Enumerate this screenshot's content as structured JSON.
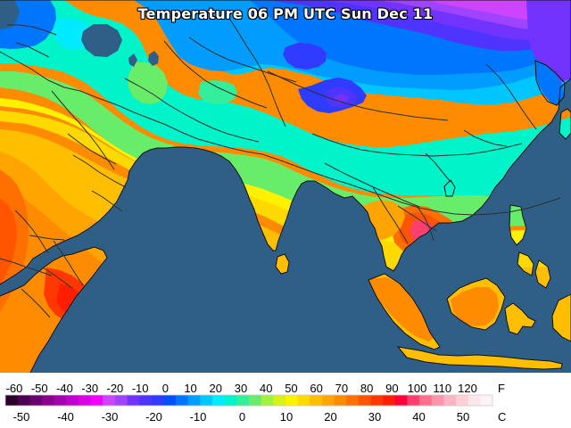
{
  "map": {
    "title": "Temperature 06 PM UTC Sun Dec 11"
  },
  "legend": {
    "fahrenheit_labels": [
      "-60",
      "-50",
      "-40",
      "-30",
      "-20",
      "-10",
      "0",
      "10",
      "20",
      "30",
      "40",
      "50",
      "60",
      "70",
      "80",
      "90",
      "100",
      "110",
      "120"
    ],
    "celsius_labels": [
      "-50",
      "-40",
      "-30",
      "-20",
      "-10",
      "0",
      "10",
      "20",
      "30",
      "40",
      "50"
    ],
    "unit_f": "F",
    "unit_c": "C",
    "colors": [
      "#2a002a",
      "#4a004e",
      "#6a006e",
      "#8a008f",
      "#a300b1",
      "#bd00d0",
      "#d900e4",
      "#f000ff",
      "#cc44ff",
      "#9f43ff",
      "#7333ff",
      "#4f34ff",
      "#2f3bff",
      "#0050ff",
      "#0076ff",
      "#009cff",
      "#00c6ff",
      "#00ebff",
      "#00f3c9",
      "#33ef9b",
      "#67ed6a",
      "#9ff23d",
      "#d8f11d",
      "#fff200",
      "#ffd900",
      "#ffbf00",
      "#ffa400",
      "#ff8b00",
      "#ff7000",
      "#ff5400",
      "#ff3800",
      "#ff1e00",
      "#ff003c",
      "#ff3f6d",
      "#ff6e8c",
      "#ff95ab",
      "#ffb6c3",
      "#ffd0d8",
      "#ffe6ea",
      "#fff3f5"
    ]
  }
}
